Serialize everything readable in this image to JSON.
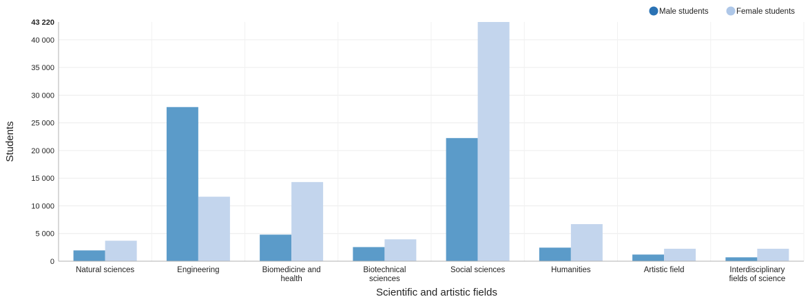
{
  "chart_data": {
    "type": "bar",
    "xlabel": "Scientific and artistic fields",
    "ylabel": "Students",
    "ylim": [
      0,
      43220
    ],
    "yticks": [
      {
        "value": 0,
        "label": "0"
      },
      {
        "value": 5000,
        "label": "5 000"
      },
      {
        "value": 10000,
        "label": "10 000"
      },
      {
        "value": 15000,
        "label": "15 000"
      },
      {
        "value": 20000,
        "label": "20 000"
      },
      {
        "value": 25000,
        "label": "25 000"
      },
      {
        "value": 30000,
        "label": "30 000"
      },
      {
        "value": 35000,
        "label": "35 000"
      },
      {
        "value": 40000,
        "label": "40 000"
      },
      {
        "value": 43220,
        "label": "43 220"
      }
    ],
    "categories": [
      [
        "Natural sciences"
      ],
      [
        "Engineering"
      ],
      [
        "Biomedicine and",
        "health"
      ],
      [
        "Biotechnical",
        "sciences"
      ],
      [
        "Social sciences"
      ],
      [
        "Humanities"
      ],
      [
        "Artistic field"
      ],
      [
        "Interdisciplinary",
        "fields of science"
      ]
    ],
    "series": [
      {
        "name": "Male students",
        "color": "#5b9bc9",
        "values": [
          1950,
          27850,
          4800,
          2550,
          22250,
          2450,
          1200,
          700
        ]
      },
      {
        "name": "Female students",
        "color": "#c3d5ed",
        "values": [
          3700,
          11650,
          14300,
          3950,
          43220,
          6700,
          2250,
          2250
        ]
      }
    ],
    "legend_markers": [
      "#2a72b4",
      "#aec7e8"
    ],
    "grid": true,
    "legend_position": "top-right"
  }
}
